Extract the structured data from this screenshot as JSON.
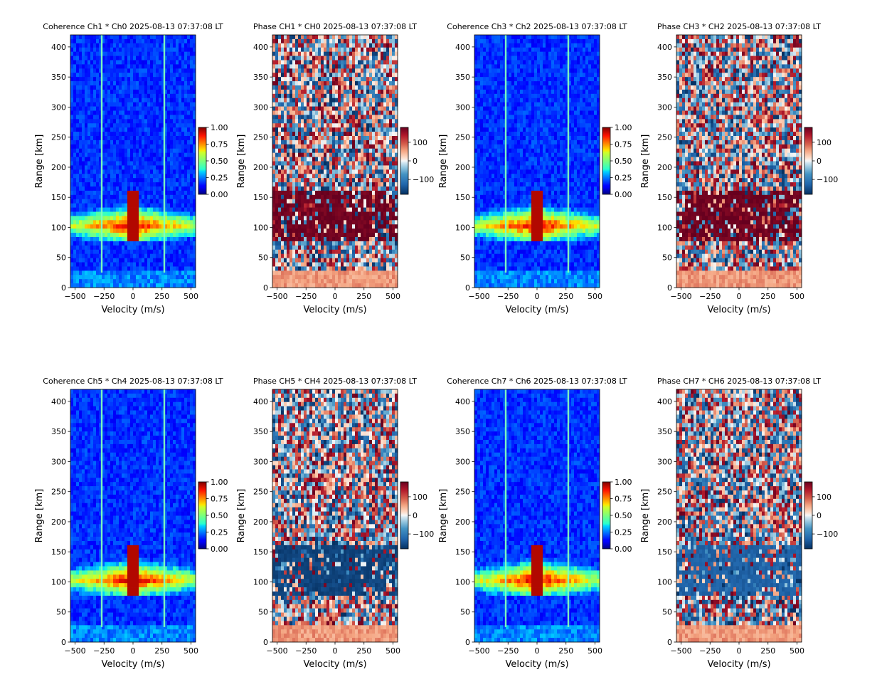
{
  "chart_data": [
    {
      "type": "heatmap",
      "kind": "coherence",
      "title": "Coherence Ch1 * Ch0 2025-08-13 07:37:08 LT",
      "xlabel": "Velocity (m/s)",
      "ylabel": "Range [km]",
      "xlim": [
        -540,
        540
      ],
      "ylim": [
        0,
        420
      ],
      "xticks": [
        -500,
        -250,
        0,
        250,
        500
      ],
      "yticks": [
        0,
        50,
        100,
        150,
        200,
        250,
        300,
        350,
        400
      ],
      "colormap": "jet",
      "clim": [
        0,
        1
      ],
      "colorbar_ticks": [
        1.0,
        0.75,
        0.5,
        0.25,
        0.0
      ],
      "colorbar_tick_labels": [
        "1.00",
        "0.75",
        "0.50",
        "0.25",
        "0.00"
      ],
      "vertical_lines_velocity": [
        -270,
        270
      ],
      "features": [
        {
          "name": "E-region echo band",
          "range_km": [
            75,
            160
          ],
          "value": 0.95
        }
      ]
    },
    {
      "type": "heatmap",
      "kind": "phase",
      "title": "Phase CH1 * CH0 2025-08-13 07:37:08 LT",
      "xlabel": "Velocity (m/s)",
      "ylabel": "Range [km]",
      "xlim": [
        -540,
        540
      ],
      "ylim": [
        0,
        420
      ],
      "xticks": [
        -500,
        -250,
        0,
        250,
        500
      ],
      "yticks": [
        0,
        50,
        100,
        150,
        200,
        250,
        300,
        350,
        400
      ],
      "colormap": "RdBu_r",
      "clim": [
        -180,
        180
      ],
      "colorbar_ticks": [
        100,
        0,
        -100
      ],
      "colorbar_tick_labels": [
        "100",
        "0",
        "−100"
      ],
      "features": [
        {
          "name": "echo region phase",
          "range_km": [
            75,
            160
          ],
          "value": 175
        }
      ]
    },
    {
      "type": "heatmap",
      "kind": "coherence",
      "title": "Coherence Ch3 * Ch2 2025-08-13 07:37:08 LT",
      "xlabel": "Velocity (m/s)",
      "ylabel": "Range [km]",
      "xlim": [
        -540,
        540
      ],
      "ylim": [
        0,
        420
      ],
      "xticks": [
        -500,
        -250,
        0,
        250,
        500
      ],
      "yticks": [
        0,
        50,
        100,
        150,
        200,
        250,
        300,
        350,
        400
      ],
      "colormap": "jet",
      "clim": [
        0,
        1
      ],
      "colorbar_ticks": [
        1.0,
        0.75,
        0.5,
        0.25,
        0.0
      ],
      "colorbar_tick_labels": [
        "1.00",
        "0.75",
        "0.50",
        "0.25",
        "0.00"
      ],
      "vertical_lines_velocity": [
        -270,
        270
      ],
      "features": [
        {
          "name": "E-region echo band",
          "range_km": [
            75,
            160
          ],
          "value": 0.95
        }
      ]
    },
    {
      "type": "heatmap",
      "kind": "phase",
      "title": "Phase CH3 * CH2 2025-08-13 07:37:08 LT",
      "xlabel": "Velocity (m/s)",
      "ylabel": "Range [km]",
      "xlim": [
        -540,
        540
      ],
      "ylim": [
        0,
        420
      ],
      "xticks": [
        -500,
        -250,
        0,
        250,
        500
      ],
      "yticks": [
        0,
        50,
        100,
        150,
        200,
        250,
        300,
        350,
        400
      ],
      "colormap": "RdBu_r",
      "clim": [
        -180,
        180
      ],
      "colorbar_ticks": [
        100,
        0,
        -100
      ],
      "colorbar_tick_labels": [
        "100",
        "0",
        "−100"
      ],
      "features": [
        {
          "name": "echo region phase",
          "range_km": [
            75,
            160
          ],
          "value": 175
        }
      ]
    },
    {
      "type": "heatmap",
      "kind": "coherence",
      "title": "Coherence Ch5 * Ch4 2025-08-13 07:37:08 LT",
      "xlabel": "Velocity (m/s)",
      "ylabel": "Range [km]",
      "xlim": [
        -540,
        540
      ],
      "ylim": [
        0,
        420
      ],
      "xticks": [
        -500,
        -250,
        0,
        250,
        500
      ],
      "yticks": [
        0,
        50,
        100,
        150,
        200,
        250,
        300,
        350,
        400
      ],
      "colormap": "jet",
      "clim": [
        0,
        1
      ],
      "colorbar_ticks": [
        1.0,
        0.75,
        0.5,
        0.25,
        0.0
      ],
      "colorbar_tick_labels": [
        "1.00",
        "0.75",
        "0.50",
        "0.25",
        "0.00"
      ],
      "vertical_lines_velocity": [
        -270,
        270
      ],
      "features": [
        {
          "name": "E-region echo band",
          "range_km": [
            75,
            160
          ],
          "value": 0.95
        }
      ]
    },
    {
      "type": "heatmap",
      "kind": "phase",
      "title": "Phase CH5 * CH4 2025-08-13 07:37:08 LT",
      "xlabel": "Velocity (m/s)",
      "ylabel": "Range [km]",
      "xlim": [
        -540,
        540
      ],
      "ylim": [
        0,
        420
      ],
      "xticks": [
        -500,
        -250,
        0,
        250,
        500
      ],
      "yticks": [
        0,
        50,
        100,
        150,
        200,
        250,
        300,
        350,
        400
      ],
      "colormap": "RdBu_r",
      "clim": [
        -180,
        180
      ],
      "colorbar_ticks": [
        100,
        0,
        -100
      ],
      "colorbar_tick_labels": [
        "100",
        "0",
        "−100"
      ],
      "features": [
        {
          "name": "echo region phase",
          "range_km": [
            75,
            160
          ],
          "value": -160
        }
      ]
    },
    {
      "type": "heatmap",
      "kind": "coherence",
      "title": "Coherence Ch7 * Ch6 2025-08-13 07:37:08 LT",
      "xlabel": "Velocity (m/s)",
      "ylabel": "Range [km]",
      "xlim": [
        -540,
        540
      ],
      "ylim": [
        0,
        420
      ],
      "xticks": [
        -500,
        -250,
        0,
        250,
        500
      ],
      "yticks": [
        0,
        50,
        100,
        150,
        200,
        250,
        300,
        350,
        400
      ],
      "colormap": "jet",
      "clim": [
        0,
        1
      ],
      "colorbar_ticks": [
        1.0,
        0.75,
        0.5,
        0.25,
        0.0
      ],
      "colorbar_tick_labels": [
        "1.00",
        "0.75",
        "0.50",
        "0.25",
        "0.00"
      ],
      "vertical_lines_velocity": [
        -270,
        270
      ],
      "features": [
        {
          "name": "E-region echo band",
          "range_km": [
            75,
            160
          ],
          "value": 0.95
        }
      ]
    },
    {
      "type": "heatmap",
      "kind": "phase",
      "title": "Phase CH7 * CH6 2025-08-13 07:37:08 LT",
      "xlabel": "Velocity (m/s)",
      "ylabel": "Range [km]",
      "xlim": [
        -540,
        540
      ],
      "ylim": [
        0,
        420
      ],
      "xticks": [
        -500,
        -250,
        0,
        250,
        500
      ],
      "yticks": [
        0,
        50,
        100,
        150,
        200,
        250,
        300,
        350,
        400
      ],
      "colormap": "RdBu_r",
      "clim": [
        -180,
        180
      ],
      "colorbar_ticks": [
        100,
        0,
        -100
      ],
      "colorbar_tick_labels": [
        "100",
        "0",
        "−100"
      ],
      "features": [
        {
          "name": "echo region phase",
          "range_km": [
            75,
            160
          ],
          "value": -130
        }
      ]
    }
  ]
}
